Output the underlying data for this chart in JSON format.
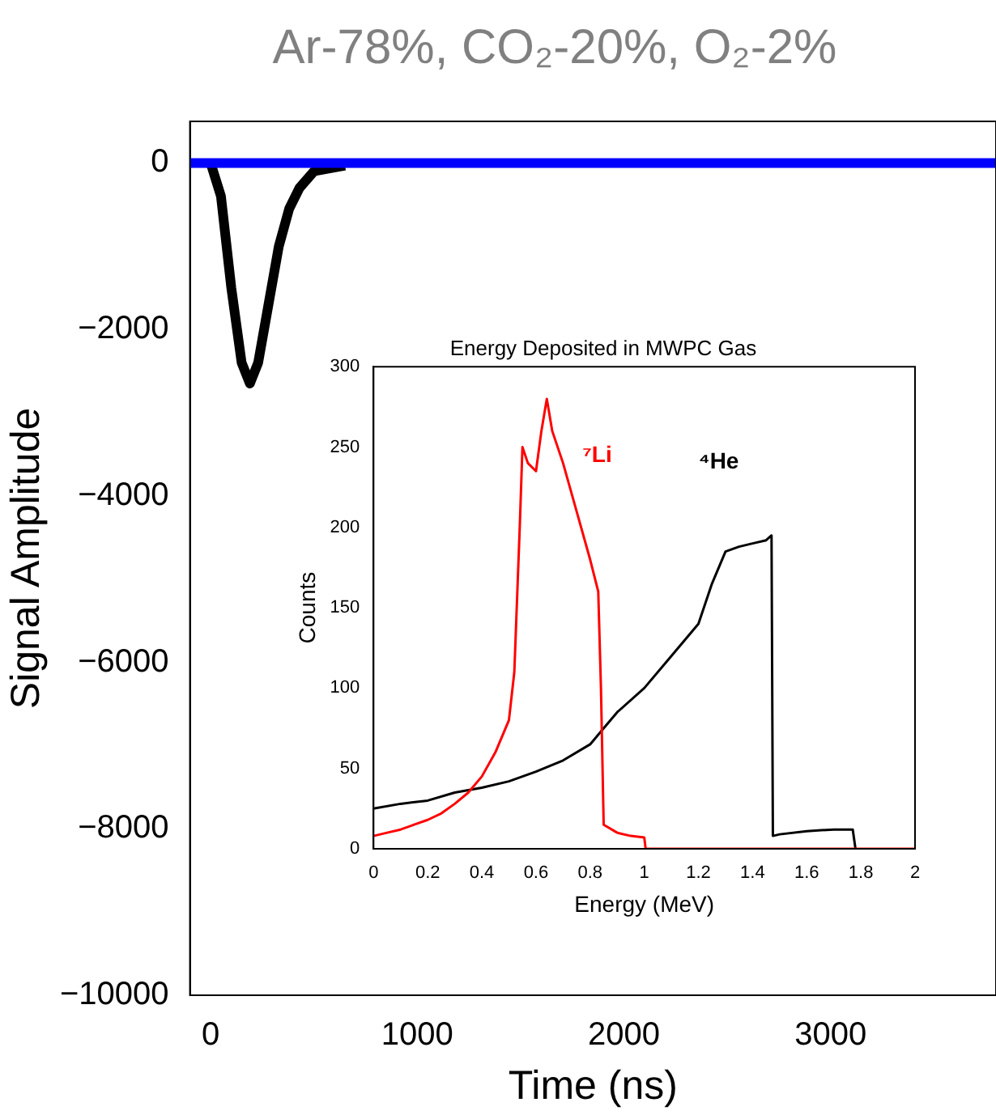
{
  "chart_data": [
    {
      "type": "line",
      "title": "Ar-78%, CO₂-20%, O₂-2%",
      "xlabel": "Time (ns)",
      "ylabel": "Signal Amplitude",
      "xlim": [
        -100,
        3800
      ],
      "xticks": [
        0,
        1000,
        2000,
        3000
      ],
      "ylim": [
        -10000,
        500
      ],
      "yticks": [
        0,
        -2000,
        -4000,
        -6000,
        -8000,
        -10000
      ],
      "series": [
        {
          "color": "#0000ff",
          "x": [
            -100,
            3800
          ],
          "values": [
            0,
            0
          ]
        },
        {
          "color": "#000000",
          "x": [
            0,
            50,
            100,
            150,
            190,
            230,
            280,
            330,
            380,
            430,
            500,
            650
          ],
          "values": [
            0,
            -400,
            -1500,
            -2400,
            -2650,
            -2400,
            -1700,
            -1000,
            -550,
            -300,
            -100,
            -30
          ]
        }
      ]
    },
    {
      "type": "line",
      "title": "Energy Deposited in MWPC Gas",
      "xlabel": "Energy (MeV)",
      "ylabel": "Counts",
      "xlim": [
        0,
        2
      ],
      "xticks": [
        0,
        0.2,
        0.4,
        0.6,
        0.8,
        1,
        1.2,
        1.4,
        1.6,
        1.8,
        2
      ],
      "ylim": [
        0,
        300
      ],
      "yticks": [
        0,
        50,
        100,
        150,
        200,
        250,
        300
      ],
      "series": [
        {
          "name": "⁷Li",
          "color": "#ff0000",
          "x": [
            0,
            0.05,
            0.1,
            0.15,
            0.2,
            0.25,
            0.3,
            0.35,
            0.4,
            0.45,
            0.5,
            0.52,
            0.54,
            0.55,
            0.57,
            0.6,
            0.62,
            0.64,
            0.66,
            0.7,
            0.75,
            0.8,
            0.83,
            0.84,
            0.85,
            0.9,
            0.95,
            1.0,
            1.005,
            2.0
          ],
          "values": [
            8,
            10,
            12,
            15,
            18,
            22,
            28,
            35,
            45,
            60,
            80,
            110,
            200,
            250,
            240,
            235,
            260,
            280,
            260,
            240,
            210,
            180,
            160,
            100,
            15,
            10,
            8,
            7,
            0,
            0
          ]
        },
        {
          "name": "⁴He",
          "color": "#000000",
          "x": [
            0,
            0.1,
            0.2,
            0.3,
            0.4,
            0.5,
            0.6,
            0.7,
            0.8,
            0.85,
            0.9,
            1.0,
            1.1,
            1.2,
            1.25,
            1.3,
            1.35,
            1.4,
            1.45,
            1.47,
            1.475,
            1.5,
            1.6,
            1.7,
            1.77,
            1.78
          ],
          "values": [
            25,
            28,
            30,
            35,
            38,
            42,
            48,
            55,
            65,
            75,
            85,
            100,
            120,
            140,
            165,
            185,
            188,
            190,
            192,
            195,
            8,
            9,
            11,
            12,
            12,
            0
          ]
        }
      ]
    }
  ]
}
